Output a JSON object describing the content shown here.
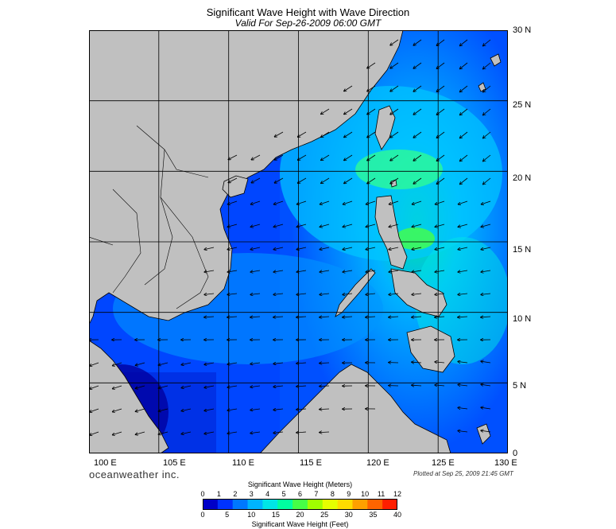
{
  "header": {
    "title": "Significant Wave Height with Wave Direction",
    "subtitle": "Valid For Sep-26-2009 06:00 GMT"
  },
  "map": {
    "lon_range": [
      100,
      130
    ],
    "lat_range": [
      0,
      30
    ],
    "lat_labels": [
      "30 N",
      "25 N",
      "20 N",
      "15 N",
      "10 N",
      "5 N",
      "0"
    ],
    "lon_labels": [
      "100 E",
      "105 E",
      "110 E",
      "115 E",
      "120 E",
      "125 E",
      "130 E"
    ],
    "land_color": "#c0c0c0",
    "region": "South China Sea"
  },
  "credits": {
    "brand": "oceanweather inc.",
    "plotted": "Plotted at Sep 25, 2009 21:45 GMT"
  },
  "colorbar": {
    "title_m": "Significant Wave Height (Meters)",
    "title_ft": "Significant Wave Height (Feet)",
    "ticks_m": [
      "0",
      "1",
      "2",
      "3",
      "4",
      "5",
      "6",
      "7",
      "8",
      "9",
      "10",
      "11",
      "12"
    ],
    "ticks_ft": [
      "0",
      "5",
      "10",
      "15",
      "20",
      "25",
      "30",
      "35",
      "40"
    ],
    "colors": [
      "#0000c8",
      "#0032ff",
      "#0078ff",
      "#00b4ff",
      "#00e6e6",
      "#00ffa0",
      "#46ff46",
      "#a0ff00",
      "#e6ff00",
      "#ffdc00",
      "#ffa000",
      "#ff6400",
      "#ff1e00"
    ]
  }
}
